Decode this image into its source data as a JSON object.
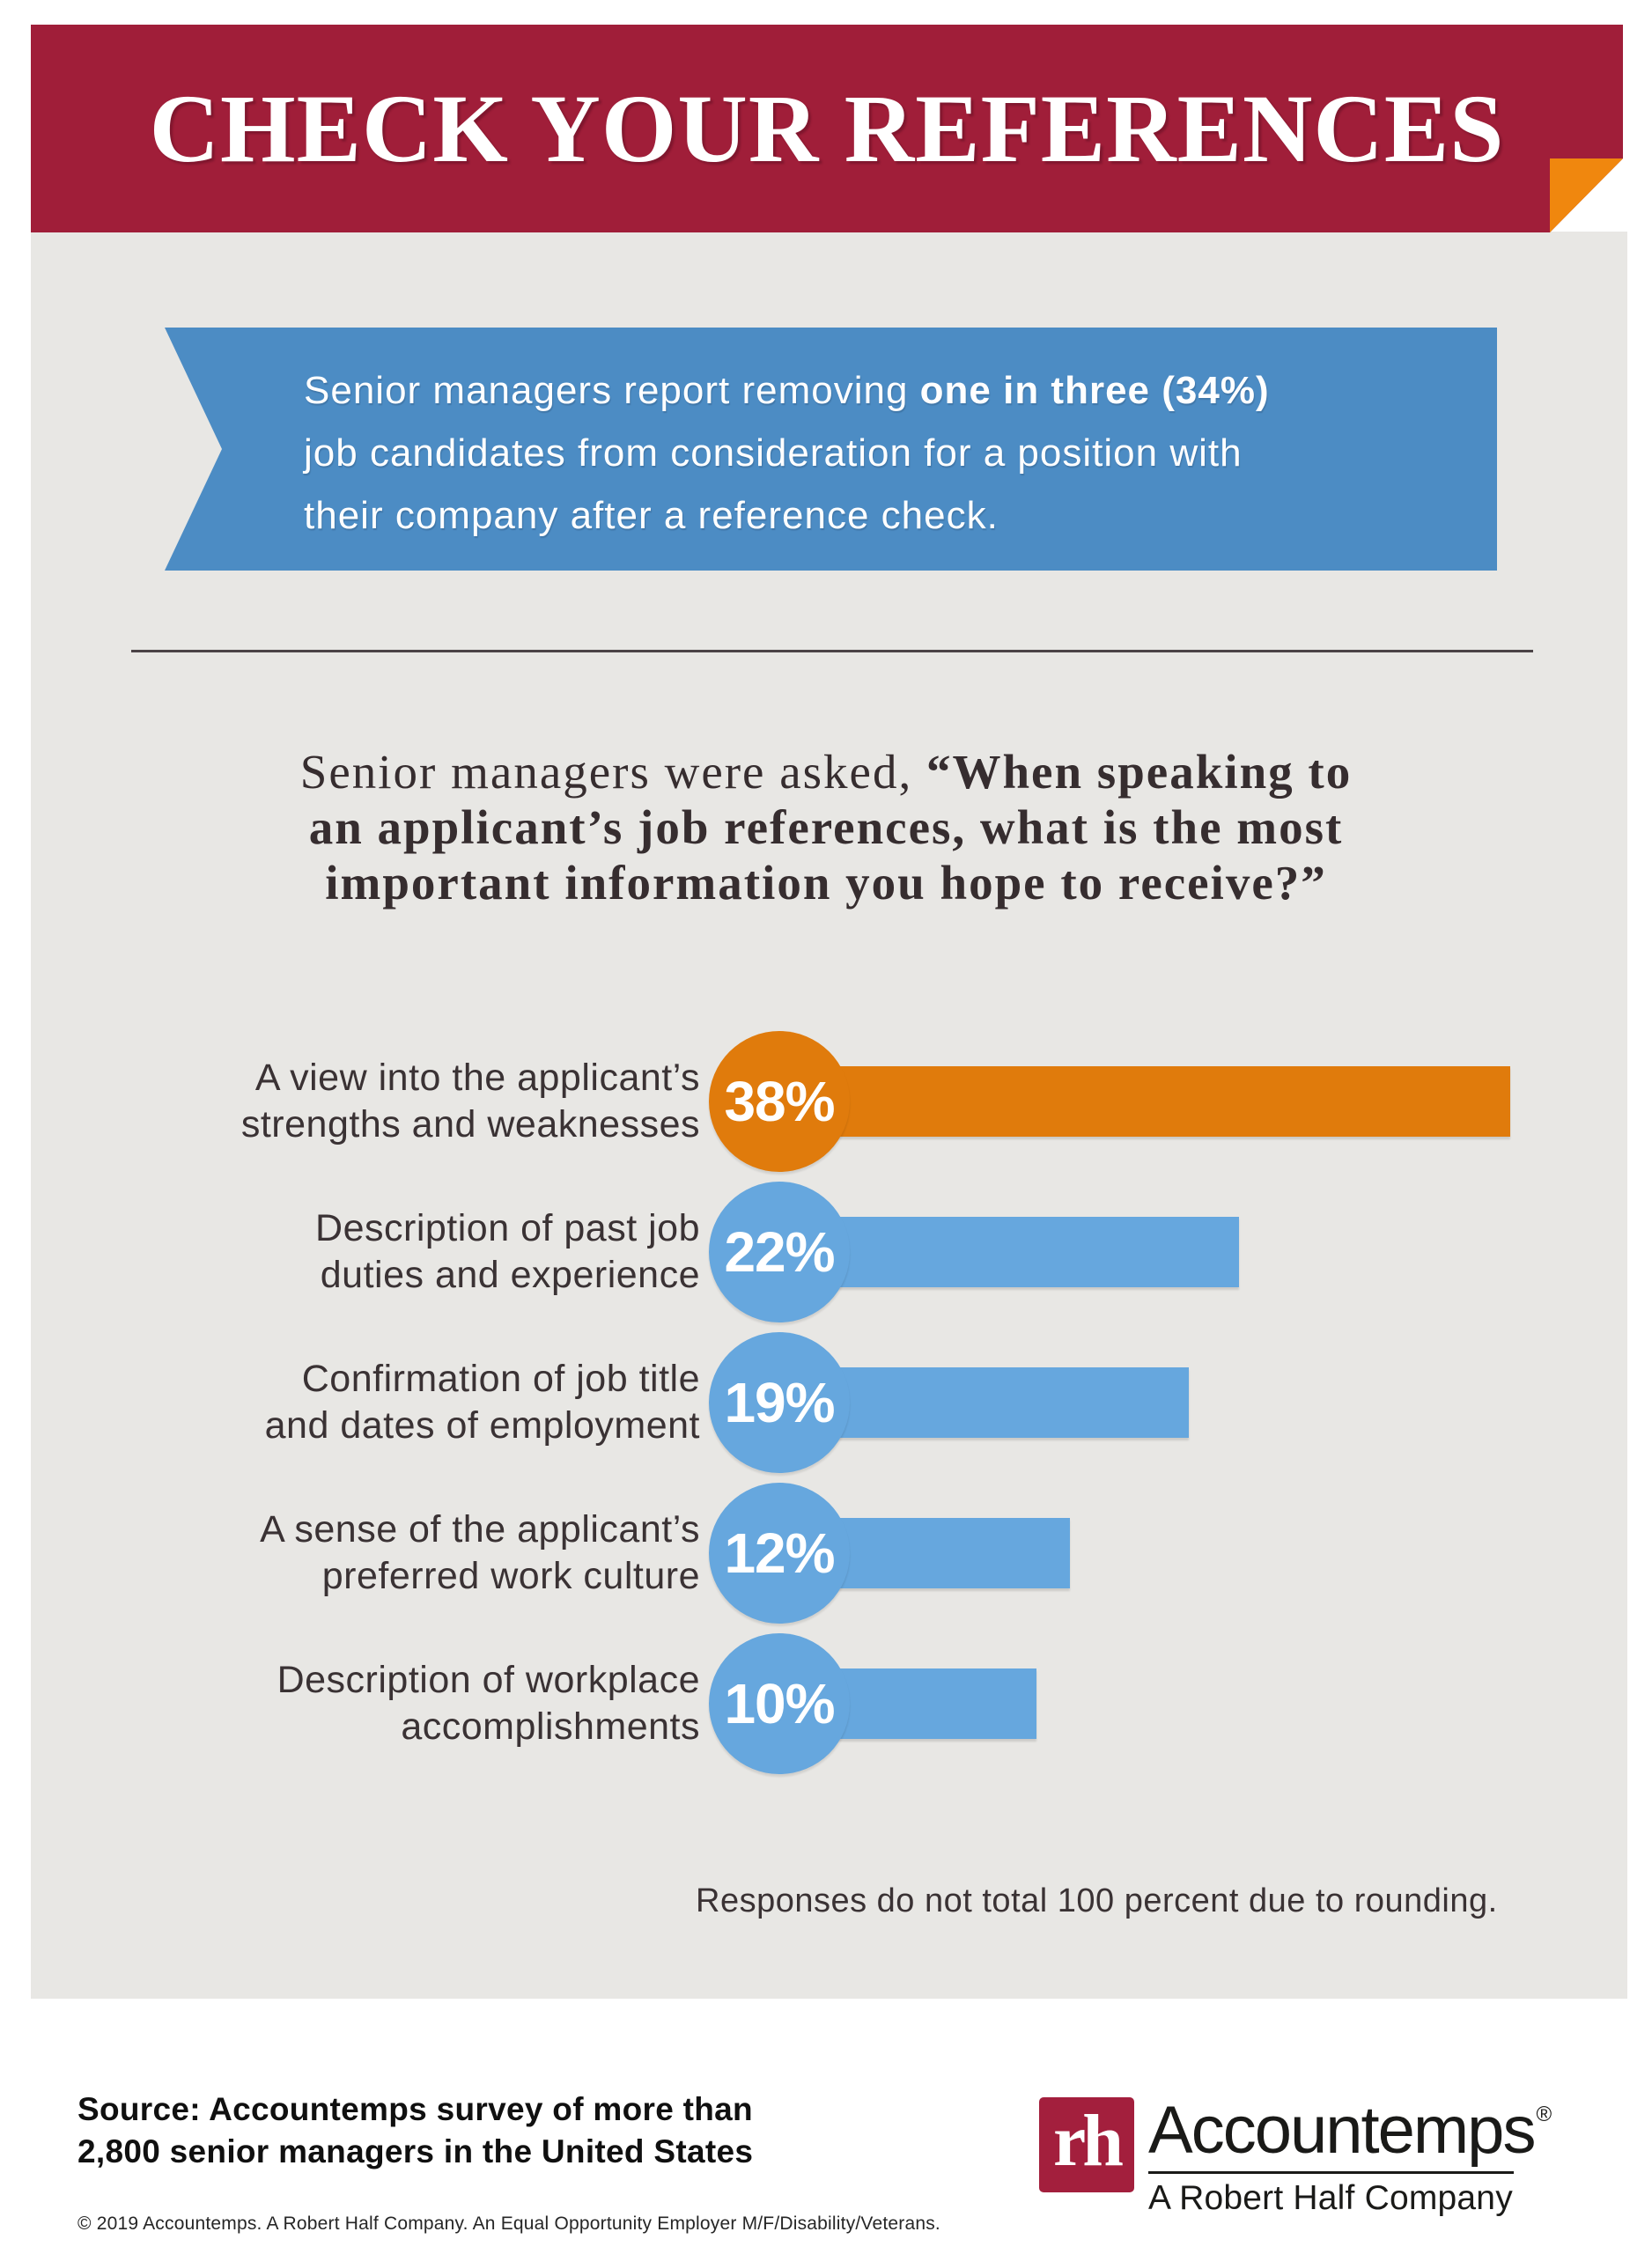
{
  "header": {
    "title": "CHECK YOUR REFERENCES"
  },
  "callout": {
    "line1_regular": "Senior managers report removing ",
    "line1_bold": "one in three (34%)",
    "line2": "job candidates from consideration for a position with",
    "line3": "their company after a reference check."
  },
  "question": {
    "line1_regular": "Senior managers were asked, ",
    "line1_bold": "“When speaking to",
    "line2": "an applicant’s job references, what is the most",
    "line3": "important information you hope to receive?”"
  },
  "chart_data": {
    "type": "bar",
    "orientation": "horizontal",
    "title": "Senior managers were asked, “When speaking to an applicant’s job references, what is the most important information you hope to receive?”",
    "categories": [
      "A view into the applicant’s strengths and weaknesses",
      "Description of past job duties and experience",
      "Confirmation of job title and dates of employment",
      "A sense of the applicant’s preferred work culture",
      "Description of workplace accomplishments"
    ],
    "categories_lines": [
      [
        "A view into the applicant’s",
        "strengths and weaknesses"
      ],
      [
        "Description of past job",
        "duties and experience"
      ],
      [
        "Confirmation of job title",
        "and dates of employment"
      ],
      [
        "A sense of the applicant’s",
        "preferred work culture"
      ],
      [
        "Description of workplace",
        "accomplishments"
      ]
    ],
    "values": [
      38,
      22,
      19,
      12,
      10
    ],
    "value_labels": [
      "38%",
      "22%",
      "19%",
      "12%",
      "10%"
    ],
    "bar_colors": [
      "#E07B0C",
      "#66A7DE",
      "#66A7DE",
      "#66A7DE",
      "#66A7DE"
    ],
    "xlim": [
      0,
      40
    ],
    "grid": false,
    "legend": "none",
    "note": "Responses do not total 100 percent due to rounding."
  },
  "footer": {
    "source_line1": "Source: Accountemps survey of more than",
    "source_line2": "2,800 senior managers in the United States",
    "copyright": "© 2019 Accountemps. A Robert Half Company. An Equal Opportunity Employer M/F/Disability/Veterans."
  },
  "logo": {
    "monogram": "rh",
    "wordmark": "Accountemps",
    "registered": "®",
    "tagline": "A Robert Half Company"
  },
  "colors": {
    "header_red": "#A01E39",
    "fold_orange": "#F0870E",
    "callout_blue": "#4C8CC4",
    "bar_orange": "#E07B0C",
    "bar_blue": "#66A7DE",
    "background_gray": "#E8E7E4",
    "text_charcoal": "#3A3234"
  }
}
